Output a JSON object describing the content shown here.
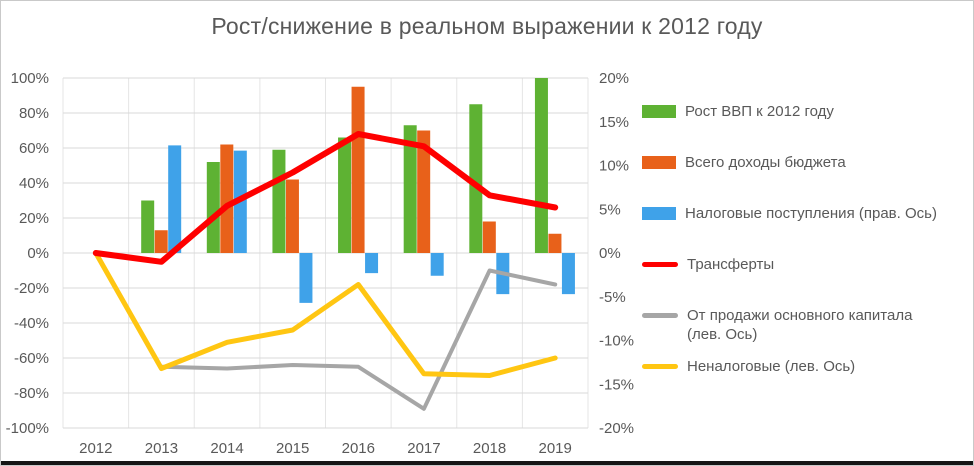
{
  "title": "Рост/снижение в реальном выражении к 2012 году",
  "chart_data": {
    "type": "combo-bar-line",
    "categories": [
      "2012",
      "2013",
      "2014",
      "2015",
      "2016",
      "2017",
      "2018",
      "2019"
    ],
    "left_axis": {
      "min": -100,
      "max": 100,
      "step": 20,
      "ticks": [
        "100%",
        "80%",
        "60%",
        "40%",
        "20%",
        "0%",
        "-20%",
        "-40%",
        "-60%",
        "-80%",
        "-100%"
      ]
    },
    "right_axis": {
      "min": -20,
      "max": 20,
      "step": 5,
      "ticks": [
        "20%",
        "15%",
        "10%",
        "5%",
        "0%",
        "-5%",
        "-10%",
        "-15%",
        "-20%"
      ]
    },
    "grid": true,
    "legend_position": "right",
    "series": [
      {
        "name": "Рост ВВП к 2012 году",
        "type": "bar",
        "axis": "left",
        "color": "#5eb233",
        "values": [
          0,
          30,
          52,
          59,
          66,
          73,
          85,
          100
        ]
      },
      {
        "name": "Всего доходы бюджета",
        "type": "bar",
        "axis": "left",
        "color": "#e8611a",
        "values": [
          0,
          13,
          62,
          42,
          95,
          70,
          18,
          11
        ]
      },
      {
        "name": "Налоговые поступления (прав. Ось)",
        "type": "bar",
        "axis": "right",
        "color": "#3fa2e9",
        "values": [
          0,
          12.3,
          11.7,
          -5.7,
          -2.3,
          -2.6,
          -4.7,
          -4.7
        ]
      },
      {
        "name": "Трансферты",
        "type": "line",
        "axis": "left",
        "color": "#fe0000",
        "line_width": 6,
        "draw_order": 3,
        "values": [
          0,
          -5,
          27,
          46,
          68,
          61,
          33,
          26
        ]
      },
      {
        "name": "От продажи основного капитала (лев. Ось)",
        "type": "line",
        "axis": "left",
        "color": "#a6a6a6",
        "line_width": 4,
        "draw_order": 1,
        "values": [
          null,
          -65,
          -66,
          -64,
          -65,
          -89,
          -10,
          -18
        ]
      },
      {
        "name": "Неналоговые (лев. Ось)",
        "type": "line",
        "axis": "left",
        "color": "#ffc612",
        "line_width": 5,
        "draw_order": 2,
        "values": [
          0,
          -66,
          -51,
          -44,
          -18,
          -69,
          -70,
          -60
        ]
      }
    ],
    "colors": {
      "axis_text": "#595959",
      "gridline": "#d9d9d9",
      "gridline_vertical": "#e5e5e5"
    }
  }
}
